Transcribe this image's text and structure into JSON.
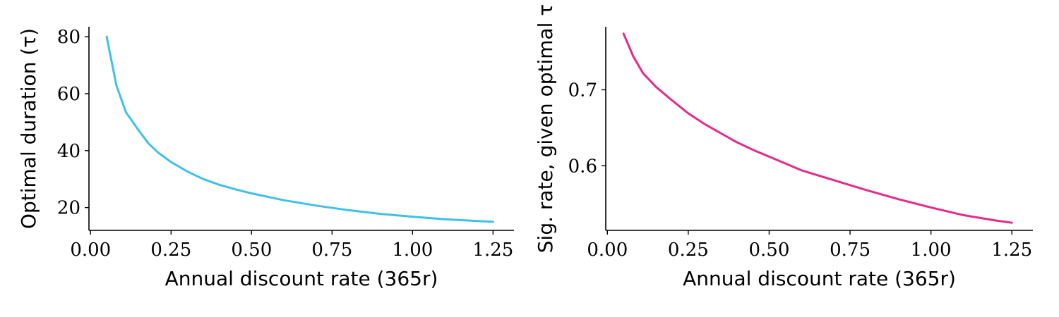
{
  "chart_data": [
    {
      "type": "line",
      "xlabel": "Annual discount rate (365r)",
      "ylabel": "Optimal duration (τ)",
      "xlim": [
        -0.005,
        1.315
      ],
      "ylim": [
        12,
        83.5
      ],
      "xticks": [
        "0.00",
        "0.25",
        "0.50",
        "0.75",
        "1.00",
        "1.25"
      ],
      "xtick_values": [
        0.0,
        0.25,
        0.5,
        0.75,
        1.0,
        1.25
      ],
      "yticks": [
        "20",
        "40",
        "60",
        "80"
      ],
      "ytick_values": [
        20,
        40,
        60,
        80
      ],
      "grid": false,
      "series": [
        {
          "color": "#3ec0ea",
          "x": [
            0.05,
            0.08,
            0.11,
            0.15,
            0.18,
            0.21,
            0.25,
            0.3,
            0.35,
            0.4,
            0.45,
            0.5,
            0.6,
            0.7,
            0.8,
            0.9,
            1.0,
            1.1,
            1.25
          ],
          "y": [
            80,
            63,
            53.5,
            47,
            42.5,
            39.3,
            36,
            32.7,
            30,
            28,
            26.4,
            25,
            22.6,
            20.7,
            19.1,
            17.8,
            16.8,
            15.9,
            15
          ]
        }
      ]
    },
    {
      "type": "line",
      "xlabel": "Annual discount rate (365r)",
      "ylabel": "Sig. rate, given optimal τ",
      "xlim": [
        -0.005,
        1.315
      ],
      "ylim": [
        0.515,
        0.783
      ],
      "xticks": [
        "0.00",
        "0.25",
        "0.50",
        "0.75",
        "1.00",
        "1.25"
      ],
      "xtick_values": [
        0.0,
        0.25,
        0.5,
        0.75,
        1.0,
        1.25
      ],
      "yticks": [
        "0.6",
        "0.7"
      ],
      "ytick_values": [
        0.6,
        0.7
      ],
      "grid": false,
      "series": [
        {
          "color": "#e8298c",
          "x": [
            0.05,
            0.08,
            0.11,
            0.15,
            0.2,
            0.25,
            0.3,
            0.35,
            0.4,
            0.45,
            0.5,
            0.6,
            0.7,
            0.8,
            0.9,
            1.0,
            1.1,
            1.2,
            1.25
          ],
          "y": [
            0.774,
            0.744,
            0.722,
            0.704,
            0.686,
            0.669,
            0.655,
            0.643,
            0.631,
            0.621,
            0.612,
            0.594,
            0.581,
            0.568,
            0.556,
            0.545,
            0.535,
            0.528,
            0.525
          ]
        }
      ]
    }
  ]
}
